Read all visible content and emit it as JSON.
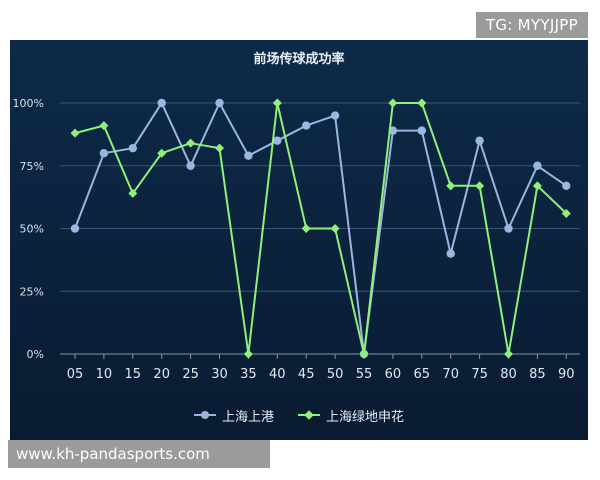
{
  "watermark_top": "TG: MYYJJPP",
  "watermark_bottom": "www.kh-pandasports.com",
  "chart_data": {
    "type": "line",
    "title": "前场传球成功率",
    "xlabel": "",
    "ylabel": "",
    "categories": [
      "05",
      "10",
      "15",
      "20",
      "25",
      "30",
      "35",
      "40",
      "45",
      "50",
      "55",
      "60",
      "65",
      "70",
      "75",
      "80",
      "85",
      "90"
    ],
    "yticks": [
      "0%",
      "25%",
      "50%",
      "75%",
      "100%"
    ],
    "ylim": [
      0,
      100
    ],
    "grid": true,
    "legend_position": "bottom",
    "series": [
      {
        "name": "上海上港",
        "color": "#9bb6e0",
        "marker": "circle",
        "values": [
          50,
          80,
          82,
          100,
          75,
          100,
          79,
          85,
          91,
          95,
          0,
          89,
          89,
          40,
          85,
          50,
          75,
          67
        ]
      },
      {
        "name": "上海绿地申花",
        "color": "#8ff07a",
        "marker": "diamond",
        "values": [
          88,
          91,
          64,
          80,
          84,
          82,
          0,
          100,
          50,
          50,
          0,
          100,
          100,
          67,
          67,
          0,
          67,
          56
        ]
      }
    ]
  }
}
